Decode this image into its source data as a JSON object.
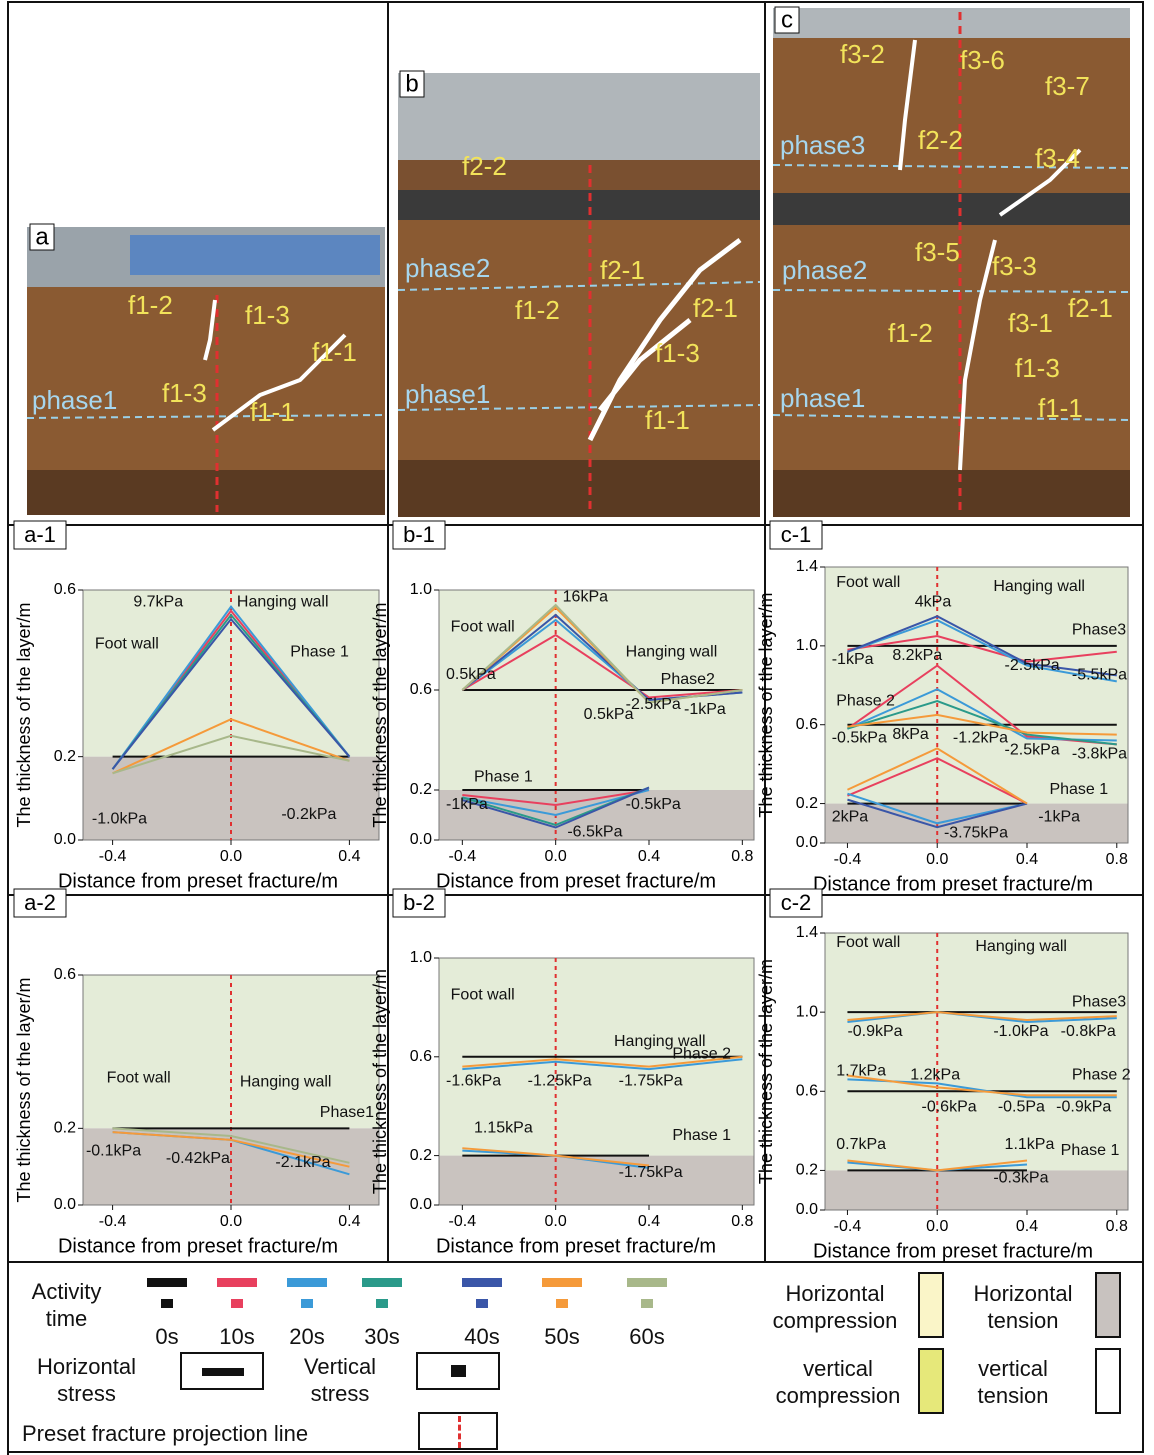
{
  "photos": [
    {
      "label": "a",
      "texts": [
        "f1-2",
        "f1-3",
        "f1-1",
        "phase1",
        "f1-3",
        "f1-1"
      ]
    },
    {
      "label": "b",
      "texts": [
        "f2-2",
        "phase2",
        "f2-1",
        "f1-2",
        "f2-1",
        "f1-3",
        "phase1",
        "f1-1"
      ]
    },
    {
      "label": "c",
      "texts": [
        "f3-2",
        "f3-6",
        "f3-7",
        "phase3",
        "f2-2",
        "f3-4",
        "f3-5",
        "f3-3",
        "phase2",
        "f1-2",
        "f3-1",
        "f2-1",
        "f1-3",
        "phase1",
        "f1-1"
      ]
    }
  ],
  "chart_data": [
    {
      "type": "line",
      "label": "a-1",
      "ylabel": "The thickness of the layer/m",
      "xlabel": "Distance from preset fracture/m",
      "xlim": [
        -0.5,
        0.5
      ],
      "ylim": [
        0,
        0.6
      ],
      "xticks": [
        -0.4,
        {
          "value": 0,
          "label": "0.0"
        },
        0.4
      ],
      "yticks": [
        {
          "value": 0,
          "label": "0.0"
        },
        0.2,
        0.6
      ],
      "annotations": [
        "9.7kPa",
        "Hanging wall",
        "Foot wall",
        "Phase 1",
        "-1.0kPa",
        "-0.2kPa"
      ],
      "series": [
        {
          "color": "#111111",
          "x": [
            -0.4,
            0,
            0.4
          ],
          "values": [
            0.2,
            0.2,
            0.2
          ]
        },
        {
          "color": "#e8405e",
          "x": [
            -0.4,
            0,
            0.4
          ],
          "values": [
            0.17,
            0.55,
            0.2
          ]
        },
        {
          "color": "#3b9ad8",
          "x": [
            -0.4,
            0,
            0.4
          ],
          "values": [
            0.17,
            0.56,
            0.2
          ]
        },
        {
          "color": "#2a9a8a",
          "x": [
            -0.4,
            0,
            0.4
          ],
          "values": [
            0.17,
            0.54,
            0.2
          ]
        },
        {
          "color": "#3a56a8",
          "x": [
            -0.4,
            0,
            0.4
          ],
          "values": [
            0.17,
            0.53,
            0.2
          ]
        },
        {
          "color": "#f59a3a",
          "x": [
            -0.4,
            0,
            0.4
          ],
          "values": [
            0.16,
            0.29,
            0.19
          ]
        },
        {
          "color": "#a8b88a",
          "x": [
            -0.4,
            0,
            0.4
          ],
          "values": [
            0.16,
            0.25,
            0.19
          ]
        }
      ]
    },
    {
      "type": "line",
      "label": "b-1",
      "ylabel": "The thickness of the layer/m",
      "xlabel": "Distance from preset fracture/m",
      "xlim": [
        -0.5,
        0.85
      ],
      "ylim": [
        0,
        1.0
      ],
      "xticks": [
        -0.4,
        {
          "value": 0,
          "label": "0.0"
        },
        0.4,
        0.8
      ],
      "yticks": [
        {
          "value": 0,
          "label": "0.0"
        },
        0.2,
        0.6,
        {
          "value": 1,
          "label": "1.0"
        }
      ],
      "annotations": [
        "16kPa",
        "Foot wall",
        "Hanging wall",
        "0.5kPa",
        "Phase2",
        "-2.5kPa",
        "0.5kPa",
        "-1kPa",
        "Phase 1",
        "-1kPa",
        "-0.5kPa",
        "-6.5kPa"
      ],
      "series": [
        {
          "color": "#111111",
          "x": [
            -0.4,
            0,
            0.4,
            0.8
          ],
          "values": [
            0.6,
            0.6,
            0.6,
            0.6
          ]
        },
        {
          "color": "#e8405e",
          "x": [
            -0.4,
            0,
            0.4,
            0.8
          ],
          "values": [
            0.6,
            0.82,
            0.57,
            0.6
          ]
        },
        {
          "color": "#3b9ad8",
          "x": [
            -0.4,
            0,
            0.4,
            0.8
          ],
          "values": [
            0.6,
            0.88,
            0.56,
            0.59
          ]
        },
        {
          "color": "#3a56a8",
          "x": [
            -0.4,
            0,
            0.4,
            0.8
          ],
          "values": [
            0.6,
            0.9,
            0.56,
            0.59
          ]
        },
        {
          "color": "#f59a3a",
          "x": [
            -0.4,
            0,
            0.4,
            0.8
          ],
          "values": [
            0.6,
            0.93,
            0.55,
            0.6
          ]
        },
        {
          "color": "#a8b88a",
          "x": [
            -0.4,
            0,
            0.4,
            0.8
          ],
          "values": [
            0.6,
            0.94,
            0.55,
            0.6
          ]
        },
        {
          "color": "#111111",
          "x": [
            -0.4,
            0,
            0.4
          ],
          "values": [
            0.2,
            0.2,
            0.2
          ]
        },
        {
          "color": "#e8405e",
          "x": [
            -0.4,
            0,
            0.4
          ],
          "values": [
            0.18,
            0.14,
            0.2
          ]
        },
        {
          "color": "#3b9ad8",
          "x": [
            -0.4,
            0,
            0.4
          ],
          "values": [
            0.17,
            0.1,
            0.2
          ]
        },
        {
          "color": "#2a9a8a",
          "x": [
            -0.4,
            0,
            0.4
          ],
          "values": [
            0.17,
            0.06,
            0.21
          ]
        },
        {
          "color": "#3a56a8",
          "x": [
            -0.4,
            0,
            0.4
          ],
          "values": [
            0.16,
            0.05,
            0.21
          ]
        }
      ]
    },
    {
      "type": "line",
      "label": "c-1",
      "ylabel": "The thickness of the layer/m",
      "xlabel": "Distance from preset fracture/m",
      "xlim": [
        -0.5,
        0.85
      ],
      "ylim": [
        0,
        1.4
      ],
      "xticks": [
        -0.4,
        {
          "value": 0,
          "label": "0.0"
        },
        0.4,
        0.8
      ],
      "yticks": [
        {
          "value": 0,
          "label": "0.0"
        },
        0.2,
        0.6,
        {
          "value": 1,
          "label": "1.0"
        },
        1.4
      ],
      "annotations": [
        "Foot wall",
        "Hanging wall",
        "4kPa",
        "Phase3",
        "-1kPa",
        "8.2kPa",
        "-2.5kPa",
        "-5.5kPa",
        "Phase 2",
        "-0.5kPa",
        "8kPa",
        "-1.2kPa",
        "-2.5kPa",
        "-3.8kPa",
        "Phase 1",
        "2kPa",
        "-3.75kPa",
        "-1kPa"
      ],
      "series": [
        {
          "color": "#111111",
          "x": [
            -0.4,
            0,
            0.4,
            0.8
          ],
          "values": [
            1.0,
            1.0,
            1.0,
            1.0
          ]
        },
        {
          "color": "#e8405e",
          "x": [
            -0.4,
            0,
            0.4,
            0.8
          ],
          "values": [
            0.98,
            1.05,
            0.92,
            0.97
          ]
        },
        {
          "color": "#3b9ad8",
          "x": [
            -0.4,
            0,
            0.4,
            0.8
          ],
          "values": [
            0.97,
            1.13,
            0.9,
            0.82
          ]
        },
        {
          "color": "#3a56a8",
          "x": [
            -0.4,
            0,
            0.4,
            0.8
          ],
          "values": [
            0.97,
            1.15,
            0.91,
            0.85
          ]
        },
        {
          "color": "#111111",
          "x": [
            -0.4,
            0,
            0.4,
            0.8
          ],
          "values": [
            0.6,
            0.6,
            0.6,
            0.6
          ]
        },
        {
          "color": "#e8405e",
          "x": [
            -0.4,
            0,
            0.4,
            0.8
          ],
          "values": [
            0.58,
            0.9,
            0.54,
            0.5
          ]
        },
        {
          "color": "#3b9ad8",
          "x": [
            -0.4,
            0,
            0.4,
            0.8
          ],
          "values": [
            0.58,
            0.78,
            0.53,
            0.52
          ]
        },
        {
          "color": "#2a9a8a",
          "x": [
            -0.4,
            0,
            0.4,
            0.8
          ],
          "values": [
            0.58,
            0.72,
            0.55,
            0.5
          ]
        },
        {
          "color": "#f59a3a",
          "x": [
            -0.4,
            0,
            0.4,
            0.8
          ],
          "values": [
            0.59,
            0.65,
            0.56,
            0.55
          ]
        },
        {
          "color": "#111111",
          "x": [
            -0.4,
            0,
            0.4
          ],
          "values": [
            0.2,
            0.2,
            0.2
          ]
        },
        {
          "color": "#e8405e",
          "x": [
            -0.4,
            0,
            0.4
          ],
          "values": [
            0.24,
            0.43,
            0.2
          ]
        },
        {
          "color": "#3b9ad8",
          "x": [
            -0.4,
            0,
            0.4
          ],
          "values": [
            0.25,
            0.1,
            0.2
          ]
        },
        {
          "color": "#3a56a8",
          "x": [
            -0.4,
            0,
            0.4
          ],
          "values": [
            0.22,
            0.08,
            0.2
          ]
        },
        {
          "color": "#f59a3a",
          "x": [
            -0.4,
            0,
            0.4
          ],
          "values": [
            0.27,
            0.48,
            0.2
          ]
        }
      ]
    },
    {
      "type": "line",
      "label": "a-2",
      "ylabel": "The thickness of the layer/m",
      "xlabel": "Distance from preset fracture/m",
      "xlim": [
        -0.5,
        0.5
      ],
      "ylim": [
        0,
        0.6
      ],
      "xticks": [
        -0.4,
        {
          "value": 0,
          "label": "0.0"
        },
        0.4
      ],
      "yticks": [
        {
          "value": 0,
          "label": "0.0"
        },
        0.2,
        0.6
      ],
      "annotations": [
        "Foot wall",
        "Hanging wall",
        "Phase1",
        "-0.1kPa",
        "-0.42kPa",
        "-2.1kPa"
      ],
      "series": [
        {
          "color": "#111111",
          "x": [
            -0.4,
            0,
            0.4
          ],
          "values": [
            0.2,
            0.2,
            0.2
          ]
        },
        {
          "color": "#3b9ad8",
          "x": [
            -0.4,
            0,
            0.4
          ],
          "values": [
            0.19,
            0.17,
            0.08
          ]
        },
        {
          "color": "#f59a3a",
          "x": [
            -0.4,
            0,
            0.4
          ],
          "values": [
            0.19,
            0.17,
            0.1
          ]
        },
        {
          "color": "#a8b88a",
          "x": [
            -0.4,
            0,
            0.4
          ],
          "values": [
            0.2,
            0.18,
            0.11
          ]
        }
      ]
    },
    {
      "type": "line",
      "label": "b-2",
      "ylabel": "The thickness of the layer/m",
      "xlabel": "Distance from preset fracture/m",
      "xlim": [
        -0.5,
        0.85
      ],
      "ylim": [
        0,
        1.0
      ],
      "xticks": [
        -0.4,
        {
          "value": 0,
          "label": "0.0"
        },
        0.4,
        0.8
      ],
      "yticks": [
        {
          "value": 0,
          "label": "0.0"
        },
        0.2,
        0.6,
        {
          "value": 1,
          "label": "1.0"
        }
      ],
      "annotations": [
        "Foot wall",
        "Hanging wall",
        "Phase 2",
        "-1.6kPa",
        "-1.25kPa",
        "-1.75kPa",
        "1.15kPa",
        "Phase 1",
        "-1.75kPa"
      ],
      "series": [
        {
          "color": "#111111",
          "x": [
            -0.4,
            0,
            0.4,
            0.8
          ],
          "values": [
            0.6,
            0.6,
            0.6,
            0.6
          ]
        },
        {
          "color": "#3b9ad8",
          "x": [
            -0.4,
            0,
            0.4,
            0.8
          ],
          "values": [
            0.55,
            0.58,
            0.55,
            0.59
          ]
        },
        {
          "color": "#f59a3a",
          "x": [
            -0.4,
            0,
            0.4,
            0.8
          ],
          "values": [
            0.56,
            0.59,
            0.56,
            0.6
          ]
        },
        {
          "color": "#111111",
          "x": [
            -0.4,
            0,
            0.4
          ],
          "values": [
            0.2,
            0.2,
            0.2
          ]
        },
        {
          "color": "#3b9ad8",
          "x": [
            -0.4,
            0,
            0.4
          ],
          "values": [
            0.22,
            0.2,
            0.15
          ]
        },
        {
          "color": "#f59a3a",
          "x": [
            -0.4,
            0,
            0.4
          ],
          "values": [
            0.23,
            0.2,
            0.16
          ]
        }
      ]
    },
    {
      "type": "line",
      "label": "c-2",
      "ylabel": "The thickness of the layer/m",
      "xlabel": "Distance from preset fracture/m",
      "xlim": [
        -0.5,
        0.85
      ],
      "ylim": [
        0,
        1.4
      ],
      "xticks": [
        -0.4,
        {
          "value": 0,
          "label": "0.0"
        },
        0.4,
        0.8
      ],
      "yticks": [
        {
          "value": 0,
          "label": "0.0"
        },
        0.2,
        0.6,
        {
          "value": 1,
          "label": "1.0"
        },
        1.4
      ],
      "annotations": [
        "Foot wall",
        "Hanging wall",
        "Phase3",
        "-0.9kPa",
        "-1.0kPa",
        "-0.8kPa",
        "1.7kPa",
        "1.2kPa",
        "Phase 2",
        "-0.6kPa",
        "-0.5Pa",
        "-0.9kPa",
        "0.7kPa",
        "1.1kPa",
        "Phase 1",
        "-0.3kPa"
      ],
      "series": [
        {
          "color": "#111111",
          "x": [
            -0.4,
            0,
            0.4,
            0.8
          ],
          "values": [
            1.0,
            1.0,
            1.0,
            1.0
          ]
        },
        {
          "color": "#3b9ad8",
          "x": [
            -0.4,
            0,
            0.4,
            0.8
          ],
          "values": [
            0.95,
            1.0,
            0.95,
            0.97
          ]
        },
        {
          "color": "#f59a3a",
          "x": [
            -0.4,
            0,
            0.4,
            0.8
          ],
          "values": [
            0.96,
            1.0,
            0.96,
            0.98
          ]
        },
        {
          "color": "#111111",
          "x": [
            -0.4,
            0,
            0.4,
            0.8
          ],
          "values": [
            0.6,
            0.6,
            0.6,
            0.6
          ]
        },
        {
          "color": "#3b9ad8",
          "x": [
            -0.4,
            0,
            0.4,
            0.8
          ],
          "values": [
            0.66,
            0.64,
            0.57,
            0.57
          ]
        },
        {
          "color": "#f59a3a",
          "x": [
            -0.4,
            0,
            0.4,
            0.8
          ],
          "values": [
            0.68,
            0.62,
            0.58,
            0.58
          ]
        },
        {
          "color": "#111111",
          "x": [
            -0.4,
            0,
            0.4
          ],
          "values": [
            0.2,
            0.2,
            0.2
          ]
        },
        {
          "color": "#3b9ad8",
          "x": [
            -0.4,
            0,
            0.4
          ],
          "values": [
            0.24,
            0.2,
            0.23
          ]
        },
        {
          "color": "#f59a3a",
          "x": [
            -0.4,
            0,
            0.4
          ],
          "values": [
            0.25,
            0.2,
            0.25
          ]
        }
      ]
    }
  ],
  "legend": {
    "activity_title": "Activity time",
    "times": [
      {
        "label": "0s",
        "color": "#111111"
      },
      {
        "label": "10s",
        "color": "#e8405e"
      },
      {
        "label": "20s",
        "color": "#3b9ad8"
      },
      {
        "label": "30s",
        "color": "#2a9a8a"
      },
      {
        "label": "40s",
        "color": "#3a56a8"
      },
      {
        "label": "50s",
        "color": "#f59a3a"
      },
      {
        "label": "60s",
        "color": "#a8b88a"
      }
    ],
    "horizontal_stress": "Horizontal stress",
    "vertical_stress": "Vertical stress",
    "fracture_line": "Preset fracture projection line",
    "horizontal_compression": "Horizontal compression",
    "horizontal_tension": "Horizontal tension",
    "vertical_compression": "vertical compression",
    "vertical_tension": "vertical tension"
  }
}
